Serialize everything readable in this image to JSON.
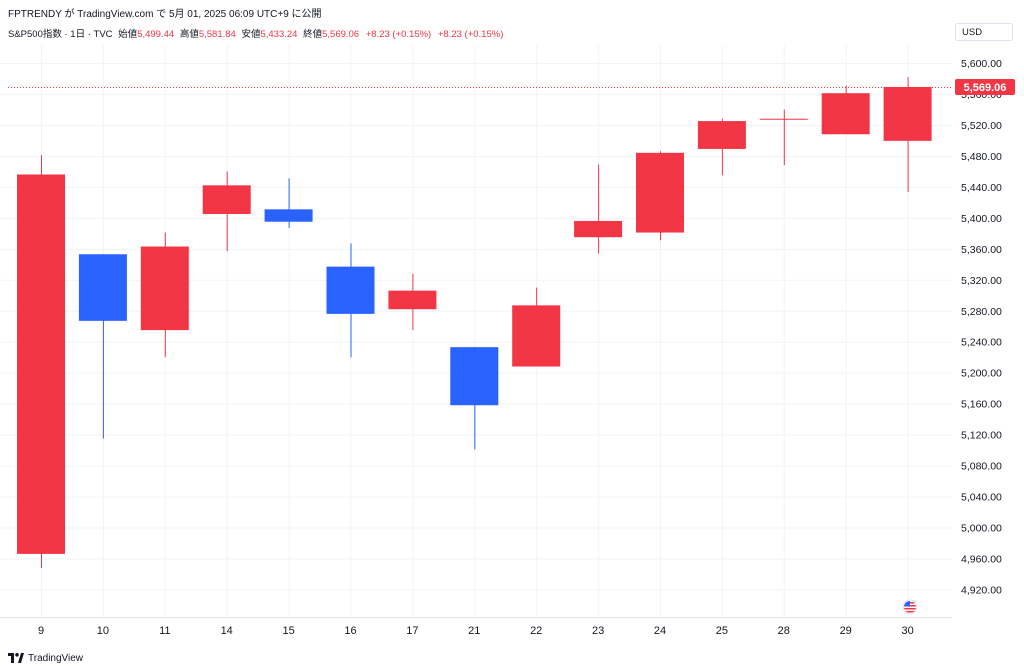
{
  "header": {
    "publish_text": "FPTRENDY が TradingView.com で 5月 01, 2025 06:09 UTC+9 に公開"
  },
  "legend": {
    "symbol": "S&P500指数 · 1日 · TVC",
    "open_label": "始値",
    "open_value": "5,499.44",
    "high_label": "高値",
    "high_value": "5,581.84",
    "low_label": "安値",
    "low_value": "5,433.24",
    "close_label": "終値",
    "close_value": "5,569.06",
    "change": "+8.23 (+0.15%)",
    "change2": "+8.23 (+0.15%)"
  },
  "currency_button": "USD",
  "last_price_label": "5,569.06",
  "footer": {
    "brand": "TradingView"
  },
  "colors": {
    "up": "#f23645",
    "down": "#2962ff",
    "grid": "#f0f3fa",
    "axis_text": "#131722"
  },
  "chart_data": {
    "type": "candlestick",
    "categories": [
      "9",
      "10",
      "11",
      "14",
      "15",
      "16",
      "17",
      "21",
      "22",
      "23",
      "24",
      "25",
      "28",
      "29",
      "30"
    ],
    "candles": [
      {
        "o": 4966,
        "h": 5481,
        "l": 4948,
        "c": 5456
      },
      {
        "o": 5353,
        "h": 5353,
        "l": 5115,
        "c": 5267
      },
      {
        "o": 5255,
        "h": 5381,
        "l": 5220,
        "c": 5363
      },
      {
        "o": 5405,
        "h": 5460,
        "l": 5357,
        "c": 5442
      },
      {
        "o": 5411,
        "h": 5451,
        "l": 5387,
        "c": 5395
      },
      {
        "o": 5337,
        "h": 5367,
        "l": 5220,
        "c": 5276
      },
      {
        "o": 5282,
        "h": 5328,
        "l": 5255,
        "c": 5306
      },
      {
        "o": 5233,
        "h": 5233,
        "l": 5101,
        "c": 5158
      },
      {
        "o": 5208,
        "h": 5310,
        "l": 5208,
        "c": 5287
      },
      {
        "o": 5375,
        "h": 5469,
        "l": 5354,
        "c": 5396
      },
      {
        "o": 5381,
        "h": 5486,
        "l": 5371,
        "c": 5484
      },
      {
        "o": 5489,
        "h": 5528,
        "l": 5455,
        "c": 5525
      },
      {
        "o": 5528,
        "h": 5540,
        "l": 5468,
        "c": 5528
      },
      {
        "o": 5508,
        "h": 5571,
        "l": 5508,
        "c": 5561
      },
      {
        "o": 5499.44,
        "h": 5581.84,
        "l": 5433.24,
        "c": 5569.06
      }
    ],
    "y_ticks": [
      "5,600.00",
      "5,560.00",
      "5,520.00",
      "5,480.00",
      "5,440.00",
      "5,400.00",
      "5,360.00",
      "5,320.00",
      "5,280.00",
      "5,240.00",
      "5,200.00",
      "5,160.00",
      "5,120.00",
      "5,080.00",
      "5,040.00",
      "5,000.00",
      "4,960.00",
      "4,920.00"
    ],
    "ylim": [
      4920,
      5600
    ],
    "last_price": 5569.06,
    "grid": true
  }
}
